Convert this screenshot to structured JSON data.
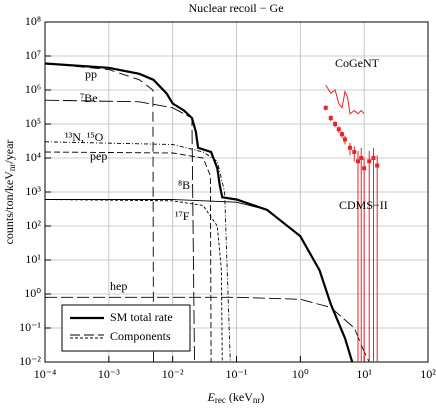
{
  "chart_data": {
    "type": "line",
    "title": "Nuclear recoil − Ge",
    "xlabel": [
      "E",
      "rec",
      " (keV",
      "nr",
      ")"
    ],
    "ylabel": [
      "counts/ton/keV",
      "nr",
      "/year"
    ],
    "xscale": "log",
    "yscale": "log",
    "grid": true,
    "legend": "lower left",
    "xlim": [
      0.0001,
      100
    ],
    "ylim": [
      0.01,
      100000000
    ],
    "xticks": [
      {
        "value": 0.0001,
        "label": "10⁻⁴"
      },
      {
        "value": 0.001,
        "label": "10⁻³"
      },
      {
        "value": 0.01,
        "label": "10⁻²"
      },
      {
        "value": 0.1,
        "label": "10⁻¹"
      },
      {
        "value": 1,
        "label": "10⁰"
      },
      {
        "value": 10,
        "label": "10¹"
      },
      {
        "value": 100,
        "label": "10²"
      }
    ],
    "yticks": [
      {
        "value": 0.01,
        "label": "10⁻²"
      },
      {
        "value": 0.1,
        "label": "10⁻¹"
      },
      {
        "value": 1,
        "label": "10⁰"
      },
      {
        "value": 10,
        "label": "10¹"
      },
      {
        "value": 100,
        "label": "10²"
      },
      {
        "value": 1000,
        "label": "10³"
      },
      {
        "value": 10000,
        "label": "10⁴"
      },
      {
        "value": 100000,
        "label": "10⁵"
      },
      {
        "value": 1000000,
        "label": "10⁶"
      },
      {
        "value": 10000000,
        "label": "10⁷"
      },
      {
        "value": 100000000,
        "label": "10⁸"
      }
    ],
    "total": {
      "name": "SM total rate",
      "color": "#000000",
      "x": [
        0.0001,
        0.001,
        0.003,
        0.005,
        0.008,
        0.01,
        0.015,
        0.02,
        0.023,
        0.025,
        0.04,
        0.05,
        0.055,
        0.06,
        0.1,
        0.3,
        1,
        2,
        3,
        5,
        6.5
      ],
      "values": [
        6000000,
        4500000,
        3000000,
        2000000,
        800000,
        400000,
        250000,
        150000,
        60000,
        20000,
        15000,
        5000,
        1500,
        700,
        600,
        300,
        50,
        5,
        0.5,
        0.05,
        0.01
      ]
    },
    "components": {
      "name": "Components",
      "color": "#000000",
      "items": [
        {
          "label": "pp",
          "dash": "10,5",
          "x": [
            0.0001,
            0.001,
            0.003,
            0.0049,
            0.005
          ],
          "values": [
            6000000,
            4000000,
            2000000,
            1000000,
            0.01
          ]
        },
        {
          "label": "⁷Be",
          "dash": "14,4",
          "x": [
            0.0001,
            0.003,
            0.01,
            0.02,
            0.022
          ],
          "values": [
            500000,
            450000,
            300000,
            150000,
            0.01
          ]
        },
        {
          "label": "¹³N, ¹⁵O",
          "dash": "4,2,1,2",
          "x": [
            0.0001,
            0.01,
            0.03,
            0.05,
            0.065,
            0.08
          ],
          "values": [
            30000,
            25000,
            15000,
            8000,
            1000,
            0.01
          ]
        },
        {
          "label": "pep",
          "dash": "6,3",
          "x": [
            0.0001,
            0.01,
            0.03,
            0.039,
            0.04
          ],
          "values": [
            15000,
            14000,
            10000,
            3000,
            0.01
          ]
        },
        {
          "label": "⁸B",
          "dash": "1,0",
          "x": [
            0.0001,
            0.01,
            0.1,
            0.3,
            1,
            2,
            3,
            5,
            6.5
          ],
          "values": [
            600,
            600,
            500,
            300,
            50,
            5,
            0.5,
            0.05,
            0.01
          ]
        },
        {
          "label": "¹⁷F",
          "dash": "3,2",
          "x": [
            0.0001,
            0.01,
            0.03,
            0.05,
            0.058,
            0.06
          ],
          "values": [
            600,
            550,
            400,
            100,
            5,
            0.01
          ]
        },
        {
          "label": "hep",
          "dash": "12,4",
          "x": [
            0.0001,
            0.1,
            1,
            3,
            7,
            10,
            12
          ],
          "values": [
            0.8,
            0.8,
            0.7,
            0.4,
            0.1,
            0.02,
            0.01
          ]
        }
      ]
    },
    "cogent": {
      "label": "CoGeNT",
      "color": "#e8242a",
      "x": [
        2.5,
        3,
        3.5,
        4,
        4.5,
        5,
        5.5,
        6,
        7,
        8,
        9,
        10
      ],
      "values": [
        1400000,
        800000,
        1000000,
        400000,
        300000,
        900000,
        600000,
        200000,
        250000,
        200000,
        250000,
        200000
      ]
    },
    "cdms": {
      "label": "CDMS−II",
      "color": "#e8242a",
      "x": [
        2.5,
        3,
        3.5,
        4,
        4.5,
        5,
        6,
        7,
        8,
        9,
        10,
        12,
        14,
        16
      ],
      "values": [
        300000,
        150000,
        100000,
        70000,
        50000,
        35000,
        20000,
        15000,
        8000,
        10000,
        5000,
        8000,
        10000,
        6000
      ],
      "errors": [
        50000,
        30000,
        20000,
        15000,
        12000,
        10000,
        8000,
        7000,
        8000,
        10000,
        5000,
        8000,
        10000,
        6000
      ]
    }
  }
}
